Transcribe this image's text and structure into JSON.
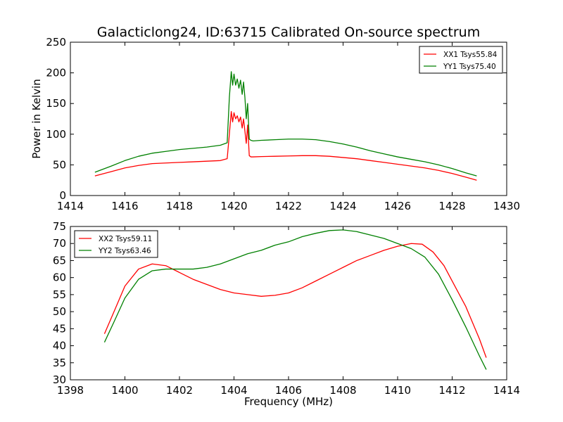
{
  "chart_data": [
    {
      "type": "line",
      "title": "Galacticlong24, ID:63715 Calibrated On-source spectrum",
      "xlabel": "",
      "ylabel": "Power in Kelvin",
      "xlim": [
        1414,
        1430
      ],
      "ylim": [
        0,
        250
      ],
      "xticks": [
        "1414",
        "1416",
        "1418",
        "1420",
        "1422",
        "1424",
        "1426",
        "1428",
        "1430"
      ],
      "yticks": [
        "0",
        "50",
        "100",
        "150",
        "200",
        "250"
      ],
      "legend_position": "top-right",
      "grid": false,
      "series": [
        {
          "name": "XX1 Tsys55.84",
          "color": "#ff0000",
          "x": [
            1414.9,
            1415.5,
            1416.0,
            1416.5,
            1417.0,
            1417.5,
            1418.0,
            1418.5,
            1419.0,
            1419.5,
            1419.75,
            1419.83,
            1419.9,
            1419.95,
            1420.0,
            1420.06,
            1420.12,
            1420.18,
            1420.24,
            1420.3,
            1420.35,
            1420.4,
            1420.45,
            1420.5,
            1420.56,
            1420.62,
            1420.7,
            1421.0,
            1421.5,
            1422.0,
            1422.5,
            1423.0,
            1423.5,
            1424.0,
            1424.5,
            1425.0,
            1425.5,
            1426.0,
            1426.5,
            1427.0,
            1427.5,
            1428.0,
            1428.5,
            1428.9
          ],
          "y": [
            32,
            39,
            45,
            49,
            52,
            53,
            54,
            55,
            56,
            57,
            60,
            100,
            137,
            120,
            135,
            125,
            130,
            120,
            128,
            110,
            125,
            105,
            85,
            115,
            65,
            63,
            63,
            63.5,
            64,
            64.5,
            65,
            65,
            64,
            62,
            60,
            57,
            54,
            51,
            48,
            45,
            41,
            36,
            30,
            25
          ]
        },
        {
          "name": "YY1 Tsys75.40",
          "color": "#008000",
          "x": [
            1414.9,
            1415.5,
            1416.0,
            1416.5,
            1417.0,
            1417.5,
            1418.0,
            1418.5,
            1419.0,
            1419.5,
            1419.75,
            1419.83,
            1419.9,
            1419.95,
            1420.0,
            1420.06,
            1420.12,
            1420.18,
            1420.24,
            1420.3,
            1420.35,
            1420.4,
            1420.45,
            1420.5,
            1420.56,
            1420.62,
            1420.7,
            1421.0,
            1421.5,
            1422.0,
            1422.5,
            1423.0,
            1423.5,
            1424.0,
            1424.5,
            1425.0,
            1425.5,
            1426.0,
            1426.5,
            1427.0,
            1427.5,
            1428.0,
            1428.5,
            1428.9
          ],
          "y": [
            38,
            48,
            57,
            64,
            69,
            72,
            75,
            77,
            79,
            82,
            86,
            160,
            202,
            180,
            198,
            180,
            190,
            175,
            188,
            165,
            185,
            160,
            125,
            150,
            92,
            90,
            89,
            90,
            91,
            92,
            92,
            91,
            88,
            84,
            79,
            73,
            68,
            63,
            59,
            55,
            50,
            44,
            37,
            32
          ]
        }
      ]
    },
    {
      "type": "line",
      "title": "",
      "xlabel": "Frequency (MHz)",
      "ylabel": "",
      "xlim": [
        1398,
        1414
      ],
      "ylim": [
        30,
        75
      ],
      "xticks": [
        "1398",
        "1400",
        "1402",
        "1404",
        "1406",
        "1408",
        "1410",
        "1412",
        "1414"
      ],
      "yticks": [
        "30",
        "35",
        "40",
        "45",
        "50",
        "55",
        "60",
        "65",
        "70",
        "75"
      ],
      "legend_position": "top-left",
      "grid": false,
      "series": [
        {
          "name": "XX2 Tsys59.11",
          "color": "#ff0000",
          "x": [
            1399.25,
            1399.6,
            1400.0,
            1400.5,
            1401.0,
            1401.5,
            1402.0,
            1402.5,
            1403.0,
            1403.5,
            1404.0,
            1404.5,
            1405.0,
            1405.5,
            1406.0,
            1406.5,
            1407.0,
            1407.5,
            1408.0,
            1408.5,
            1409.0,
            1409.5,
            1410.0,
            1410.5,
            1410.9,
            1411.3,
            1411.7,
            1412.0,
            1412.5,
            1413.0,
            1413.25
          ],
          "y": [
            43.5,
            50,
            57.5,
            62.5,
            64,
            63.5,
            61.5,
            59.5,
            58,
            56.5,
            55.5,
            55,
            54.5,
            54.8,
            55.5,
            57,
            59,
            61,
            63,
            65,
            66.5,
            68,
            69.2,
            70,
            69.8,
            67.5,
            63.5,
            59,
            51.5,
            42,
            36.5
          ]
        },
        {
          "name": "YY2 Tsys63.46",
          "color": "#008000",
          "x": [
            1399.25,
            1399.6,
            1400.0,
            1400.5,
            1401.0,
            1401.5,
            1402.0,
            1402.5,
            1403.0,
            1403.5,
            1404.0,
            1404.5,
            1405.0,
            1405.5,
            1406.0,
            1406.5,
            1407.0,
            1407.5,
            1408.0,
            1408.5,
            1409.0,
            1409.5,
            1410.0,
            1410.5,
            1411.0,
            1411.5,
            1412.0,
            1412.5,
            1413.0,
            1413.25
          ],
          "y": [
            41,
            47,
            54,
            59.5,
            62,
            62.5,
            62.5,
            62.5,
            63,
            64,
            65.5,
            67,
            68,
            69.5,
            70.5,
            72,
            73,
            73.8,
            74,
            73.5,
            72.5,
            71.5,
            70,
            68.5,
            66,
            61,
            53.5,
            45.5,
            37,
            33
          ]
        }
      ]
    }
  ]
}
